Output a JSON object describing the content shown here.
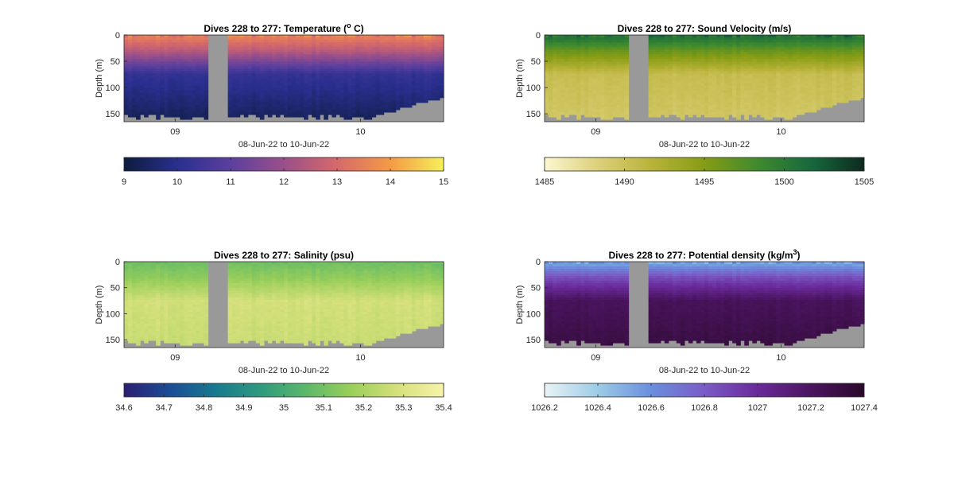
{
  "figure": {
    "background": "#ffffff",
    "no_data_color": "#999999"
  },
  "chart_data": [
    {
      "type": "heatmap",
      "title": "Dives 228 to 277: Temperature (",
      "title_unit": "o",
      "title_unit_style": "superscript",
      "title_tail": " C)",
      "xlabel": "08-Jun-22 to 10-Jun-22",
      "ylabel": "Depth (m)",
      "x_ticks": [
        "09",
        "10"
      ],
      "y_ticks": [
        0,
        50,
        100,
        150
      ],
      "ylim": [
        0,
        165
      ],
      "y_reversed": true,
      "colorbar": {
        "min": 9,
        "max": 15,
        "ticks": [
          9,
          10,
          11,
          12,
          13,
          14,
          15
        ],
        "colors": [
          "#0c1c3d",
          "#2a2f8f",
          "#5b3f9e",
          "#9a4f8a",
          "#d6696a",
          "#f59a45",
          "#f5f05a"
        ]
      },
      "profile": {
        "surface": 13.4,
        "mixed": 12.5,
        "thermocline": 10.2,
        "deep": 9.4
      },
      "gap": true
    },
    {
      "type": "heatmap",
      "title": "Dives 228 to 277: Sound Velocity (m/s)",
      "xlabel": "08-Jun-22 to 10-Jun-22",
      "ylabel": "Depth (m)",
      "x_ticks": [
        "09",
        "10"
      ],
      "y_ticks": [
        0,
        50,
        100,
        150
      ],
      "ylim": [
        0,
        165
      ],
      "y_reversed": true,
      "colorbar": {
        "min": 1485,
        "max": 1505,
        "ticks": [
          1485,
          1490,
          1495,
          1500,
          1505
        ],
        "colors": [
          "#fbf7d0",
          "#dcd07a",
          "#b9b33a",
          "#869c14",
          "#3f8a2e",
          "#16693d",
          "#0d2a1e"
        ]
      },
      "profile": {
        "surface": 1500.5,
        "mixed": 1496.5,
        "thermocline": 1490.5,
        "deep": 1489.5
      },
      "gap": true
    },
    {
      "type": "heatmap",
      "title": "Dives 228 to 277: Salinity (psu)",
      "xlabel": "08-Jun-22 to 10-Jun-22",
      "ylabel": "Depth (m)",
      "x_ticks": [
        "09",
        "10"
      ],
      "y_ticks": [
        0,
        50,
        100,
        150
      ],
      "ylim": [
        0,
        165
      ],
      "y_reversed": true,
      "colorbar": {
        "min": 34.6,
        "max": 35.4,
        "ticks": [
          34.6,
          34.7,
          34.8,
          34.9,
          35,
          35.1,
          35.2,
          35.3,
          35.4
        ],
        "colors": [
          "#2b1f73",
          "#1a4d96",
          "#177a8f",
          "#2f9a7e",
          "#5cb86a",
          "#9bcf5a",
          "#d6e07c",
          "#f7f3a8"
        ]
      },
      "profile": {
        "surface": 35.1,
        "mixed": 35.15,
        "thermocline": 35.28,
        "deep": 35.26
      },
      "gap": true
    },
    {
      "type": "heatmap",
      "title": "Dives 228 to 277: Potential density (kg/m",
      "title_unit": "3",
      "title_unit_style": "superscript",
      "title_tail": ")",
      "xlabel": "08-Jun-22 to 10-Jun-22",
      "ylabel": "Depth (m)",
      "x_ticks": [
        "09",
        "10"
      ],
      "y_ticks": [
        0,
        50,
        100,
        150
      ],
      "ylim": [
        0,
        165
      ],
      "y_reversed": true,
      "colorbar": {
        "min": 1026.2,
        "max": 1027.4,
        "ticks": [
          1026.2,
          1026.4,
          1026.6,
          1026.8,
          1027,
          1027.2,
          1027.4
        ],
        "colors": [
          "#e8f4f6",
          "#9ccbe6",
          "#6a8fde",
          "#7a5cc7",
          "#6a2a9a",
          "#4b1460",
          "#2a0a2a"
        ]
      },
      "profile": {
        "surface": 1026.55,
        "mixed": 1026.85,
        "thermocline": 1027.22,
        "deep": 1027.3
      },
      "gap": true
    }
  ]
}
